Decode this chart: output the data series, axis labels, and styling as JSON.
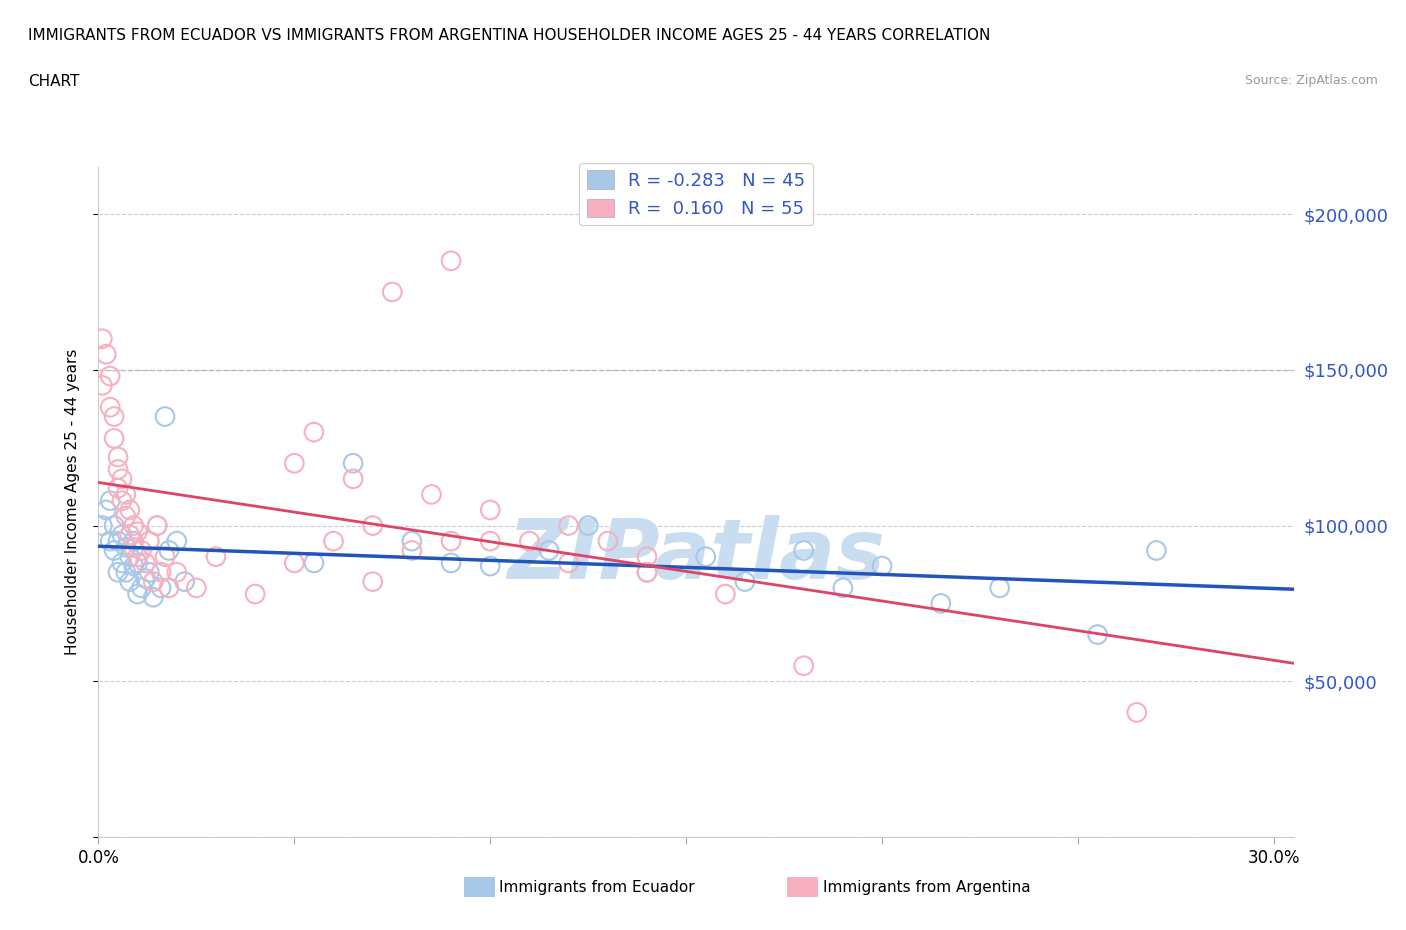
{
  "title_line1": "IMMIGRANTS FROM ECUADOR VS IMMIGRANTS FROM ARGENTINA HOUSEHOLDER INCOME AGES 25 - 44 YEARS CORRELATION",
  "title_line2": "CHART",
  "source_text": "Source: ZipAtlas.com",
  "ylabel": "Householder Income Ages 25 - 44 years",
  "xlim": [
    0.0,
    0.305
  ],
  "ylim": [
    0,
    215000
  ],
  "yticks": [
    0,
    50000,
    100000,
    150000,
    200000
  ],
  "ytick_labels": [
    "",
    "$50,000",
    "$100,000",
    "$150,000",
    "$200,000"
  ],
  "xticks": [
    0.0,
    0.05,
    0.1,
    0.15,
    0.2,
    0.25,
    0.3
  ],
  "xtick_labels": [
    "0.0%",
    "",
    "",
    "",
    "",
    "",
    "30.0%"
  ],
  "ecuador_color": "#a8c8e8",
  "argentina_color": "#f8b0c0",
  "ecuador_line_color": "#2255bb",
  "argentina_line_color": "#dd4466",
  "legend_r_color": "#3355cc",
  "r_ecuador": -0.283,
  "n_ecuador": 45,
  "r_argentina": 0.16,
  "n_argentina": 55,
  "legend_ecuador": "Immigrants from Ecuador",
  "legend_argentina": "Immigrants from Argentina",
  "watermark_text": "ZIPatlas",
  "watermark_color": "#c8ddf0",
  "ecuador_x": [
    0.001,
    0.002,
    0.003,
    0.003,
    0.004,
    0.004,
    0.005,
    0.005,
    0.006,
    0.006,
    0.007,
    0.007,
    0.008,
    0.008,
    0.009,
    0.009,
    0.01,
    0.01,
    0.011,
    0.012,
    0.013,
    0.014,
    0.015,
    0.016,
    0.017,
    0.018,
    0.02,
    0.022,
    0.055,
    0.065,
    0.08,
    0.09,
    0.1,
    0.115,
    0.125,
    0.14,
    0.155,
    0.165,
    0.18,
    0.19,
    0.2,
    0.215,
    0.23,
    0.255,
    0.27
  ],
  "ecuador_y": [
    100000,
    105000,
    95000,
    108000,
    100000,
    92000,
    95000,
    85000,
    97000,
    88000,
    93000,
    85000,
    90000,
    82000,
    95000,
    87000,
    88000,
    78000,
    80000,
    83000,
    85000,
    77000,
    100000,
    80000,
    135000,
    92000,
    95000,
    82000,
    88000,
    120000,
    95000,
    88000,
    87000,
    92000,
    100000,
    85000,
    90000,
    82000,
    92000,
    80000,
    87000,
    75000,
    80000,
    65000,
    92000
  ],
  "argentina_x": [
    0.001,
    0.001,
    0.002,
    0.003,
    0.003,
    0.004,
    0.004,
    0.005,
    0.005,
    0.005,
    0.006,
    0.006,
    0.007,
    0.007,
    0.008,
    0.008,
    0.009,
    0.009,
    0.01,
    0.01,
    0.011,
    0.012,
    0.013,
    0.014,
    0.015,
    0.016,
    0.017,
    0.018,
    0.02,
    0.025,
    0.03,
    0.04,
    0.05,
    0.06,
    0.07,
    0.08,
    0.085,
    0.09,
    0.1,
    0.11,
    0.12,
    0.13,
    0.14,
    0.05,
    0.055,
    0.065,
    0.075,
    0.09,
    0.1,
    0.12,
    0.14,
    0.16,
    0.18,
    0.265,
    0.07
  ],
  "argentina_y": [
    145000,
    160000,
    155000,
    148000,
    138000,
    135000,
    128000,
    122000,
    118000,
    112000,
    115000,
    108000,
    110000,
    103000,
    105000,
    97000,
    100000,
    93000,
    98000,
    90000,
    92000,
    88000,
    95000,
    82000,
    100000,
    85000,
    90000,
    80000,
    85000,
    80000,
    90000,
    78000,
    88000,
    95000,
    100000,
    92000,
    110000,
    95000,
    105000,
    95000,
    100000,
    95000,
    90000,
    120000,
    130000,
    115000,
    175000,
    185000,
    95000,
    88000,
    85000,
    78000,
    55000,
    40000,
    82000
  ]
}
